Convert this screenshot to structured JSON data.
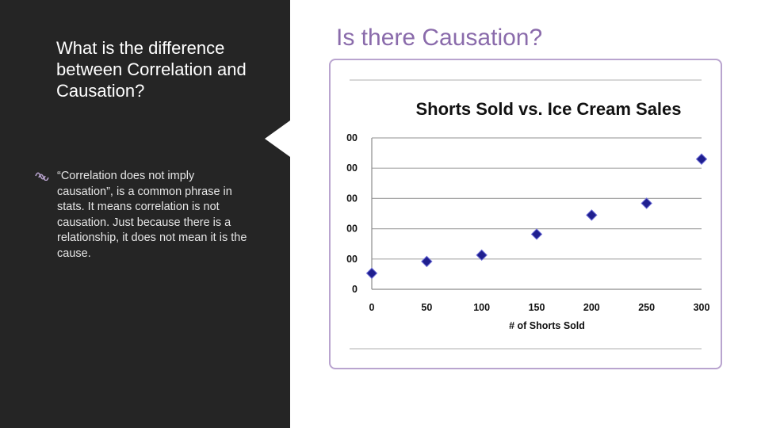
{
  "left": {
    "title": "What is the difference between Correlation and Causation?",
    "bullet_icon": "wave-bullet-icon",
    "bullet_text": "“Correlation does not imply causation”, is a common phrase in stats.  It means correlation is not causation.  Just because there is a relationship, it does not mean it is the cause."
  },
  "right": {
    "title": "Is there Causation?"
  },
  "colors": {
    "left_panel": "#252525",
    "title_purple": "#8a6bab",
    "frame_border": "#b9a4cf",
    "marker": "#1f1f8f"
  },
  "chart_data": {
    "type": "scatter",
    "title": "Shorts Sold vs. Ice Cream Sales",
    "xlabel": "# of Shorts Sold",
    "ylabel": "",
    "x_ticks": [
      "0",
      "50",
      "100",
      "150",
      "200",
      "250",
      "300"
    ],
    "y_ticks": [
      "0",
      "00",
      "00",
      "00",
      "00",
      "00"
    ],
    "xlim": [
      0,
      300
    ],
    "ylim": [
      0,
      5
    ],
    "grid": true,
    "legend": "none",
    "points": [
      {
        "x": 0,
        "y": 0.53
      },
      {
        "x": 50,
        "y": 0.92
      },
      {
        "x": 100,
        "y": 1.13
      },
      {
        "x": 150,
        "y": 1.82
      },
      {
        "x": 200,
        "y": 2.45
      },
      {
        "x": 250,
        "y": 2.84
      },
      {
        "x": 300,
        "y": 4.3
      }
    ]
  }
}
